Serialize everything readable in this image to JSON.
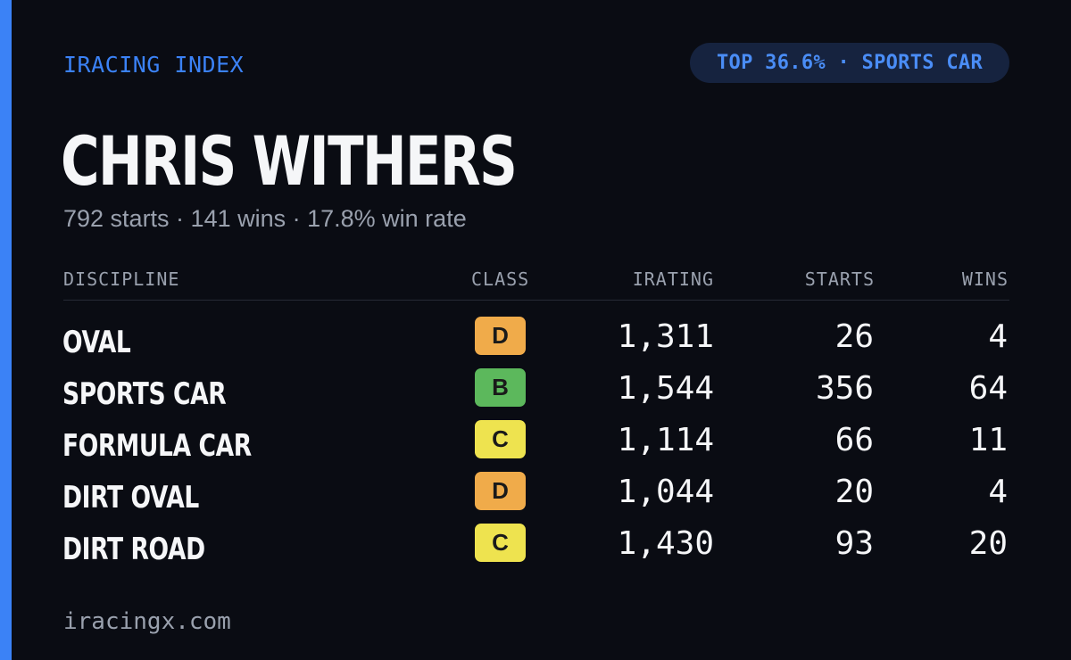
{
  "brand": "IRACING INDEX",
  "badge_text": "TOP 36.6% · SPORTS CAR",
  "driver_name": "CHRIS WITHERS",
  "summary": "792 starts · 141 wins · 17.8% win rate",
  "table": {
    "headers": {
      "discipline": "DISCIPLINE",
      "class": "CLASS",
      "irating": "IRATING",
      "starts": "STARTS",
      "wins": "WINS"
    },
    "rows": [
      {
        "discipline": "OVAL",
        "class": "D",
        "class_color": "#f0ab4a",
        "irating": "1,311",
        "starts": "26",
        "wins": "4"
      },
      {
        "discipline": "SPORTS CAR",
        "class": "B",
        "class_color": "#5cb85c",
        "irating": "1,544",
        "starts": "356",
        "wins": "64"
      },
      {
        "discipline": "FORMULA CAR",
        "class": "C",
        "class_color": "#eee34f",
        "irating": "1,114",
        "starts": "66",
        "wins": "11"
      },
      {
        "discipline": "DIRT OVAL",
        "class": "D",
        "class_color": "#f0ab4a",
        "irating": "1,044",
        "starts": "20",
        "wins": "4"
      },
      {
        "discipline": "DIRT ROAD",
        "class": "C",
        "class_color": "#eee34f",
        "irating": "1,430",
        "starts": "93",
        "wins": "20"
      }
    ]
  },
  "footer": "iracingx.com",
  "colors": {
    "accent": "#3b82f6",
    "background": "#0a0c13"
  }
}
